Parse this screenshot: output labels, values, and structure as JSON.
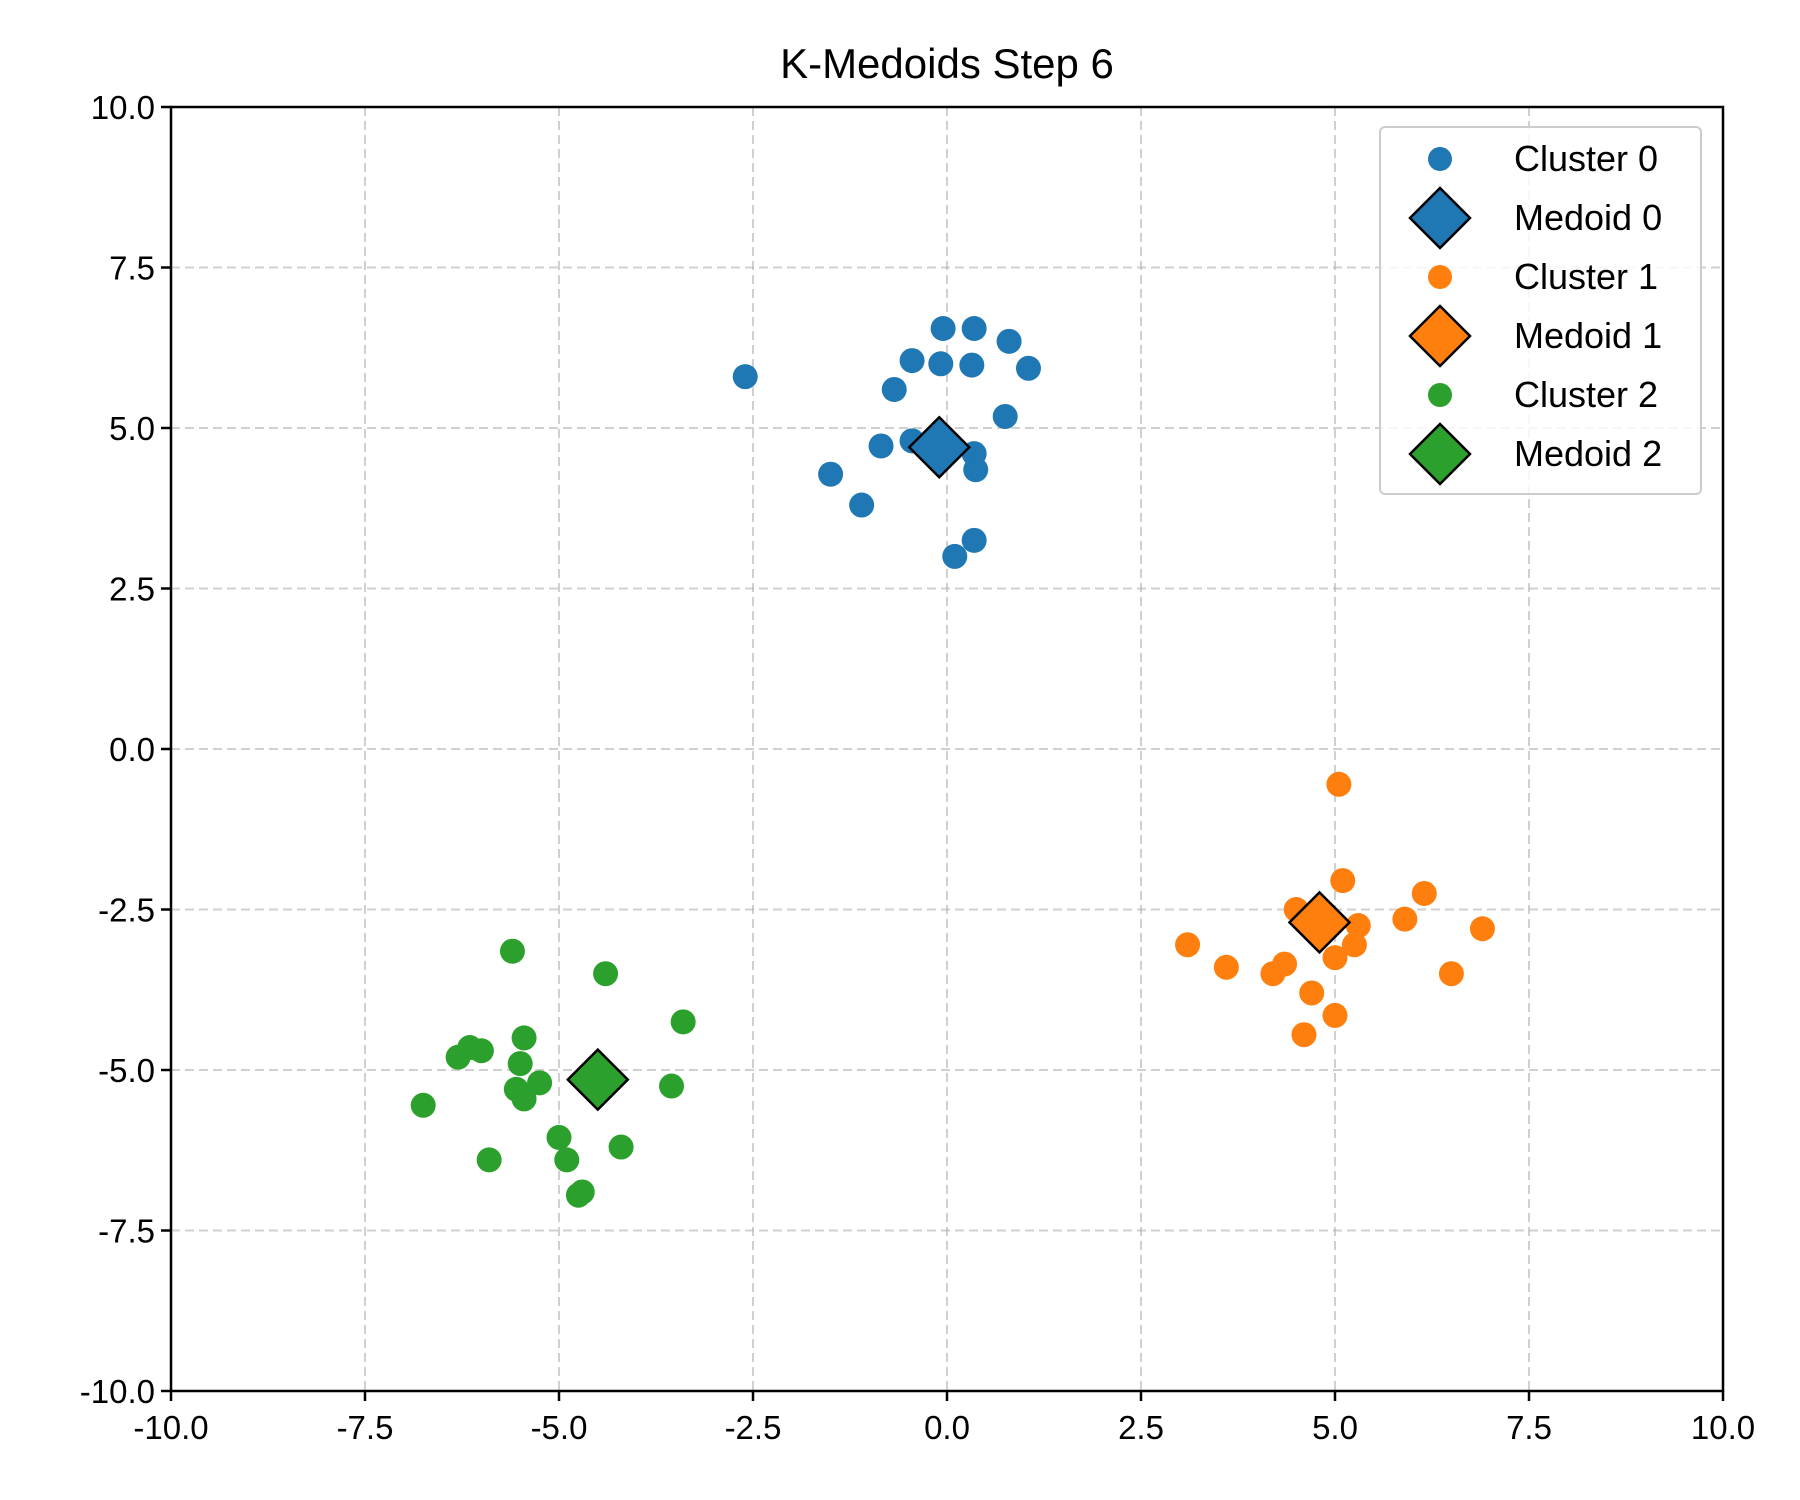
{
  "chart_data": {
    "type": "scatter",
    "title": "K-Medoids Step 6",
    "xlabel": "",
    "ylabel": "",
    "xlim": [
      -10,
      10
    ],
    "ylim": [
      -10,
      10
    ],
    "grid": true,
    "legend_position": "top-right",
    "xticks": [
      -10,
      -7.5,
      -5,
      -2.5,
      0,
      2.5,
      5,
      7.5,
      10
    ],
    "yticks": [
      -10,
      -7.5,
      -5,
      -2.5,
      0,
      2.5,
      5,
      7.5,
      10
    ],
    "xtick_labels": [
      "-10.0",
      "-7.5",
      "-5.0",
      "-2.5",
      "0.0",
      "2.5",
      "5.0",
      "7.5",
      "10.0"
    ],
    "ytick_labels": [
      "-10.0",
      "-7.5",
      "-5.0",
      "-2.5",
      "0.0",
      "2.5",
      "5.0",
      "7.5",
      "10.0"
    ],
    "series": [
      {
        "name": "Cluster 0",
        "color": "#1f77b4",
        "medoid_label": "Medoid 0",
        "medoid": [
          -0.1,
          4.7
        ],
        "points": [
          [
            -2.6,
            5.8
          ],
          [
            -0.05,
            6.55
          ],
          [
            0.35,
            6.55
          ],
          [
            0.8,
            6.35
          ],
          [
            -0.45,
            6.05
          ],
          [
            -0.08,
            6.0
          ],
          [
            0.32,
            5.98
          ],
          [
            1.05,
            5.93
          ],
          [
            -0.68,
            5.6
          ],
          [
            0.75,
            5.18
          ],
          [
            -0.85,
            4.72
          ],
          [
            -0.45,
            4.8
          ],
          [
            0.35,
            4.6
          ],
          [
            0.37,
            4.35
          ],
          [
            -1.5,
            4.28
          ],
          [
            -1.1,
            3.8
          ],
          [
            0.35,
            3.25
          ],
          [
            0.1,
            3.0
          ]
        ]
      },
      {
        "name": "Cluster 1",
        "color": "#ff7f0e",
        "medoid_label": "Medoid 1",
        "medoid": [
          4.8,
          -2.7
        ],
        "points": [
          [
            5.05,
            -0.55
          ],
          [
            5.1,
            -2.05
          ],
          [
            6.15,
            -2.25
          ],
          [
            4.5,
            -2.5
          ],
          [
            5.9,
            -2.65
          ],
          [
            5.3,
            -2.75
          ],
          [
            6.9,
            -2.8
          ],
          [
            3.1,
            -3.05
          ],
          [
            5.25,
            -3.05
          ],
          [
            5.0,
            -3.25
          ],
          [
            4.35,
            -3.35
          ],
          [
            3.6,
            -3.4
          ],
          [
            4.2,
            -3.5
          ],
          [
            6.5,
            -3.5
          ],
          [
            4.7,
            -3.8
          ],
          [
            5.0,
            -4.15
          ],
          [
            4.6,
            -4.45
          ]
        ]
      },
      {
        "name": "Cluster 2",
        "color": "#2ca02c",
        "medoid_label": "Medoid 2",
        "medoid": [
          -4.5,
          -5.15
        ],
        "points": [
          [
            -5.6,
            -3.15
          ],
          [
            -4.4,
            -3.5
          ],
          [
            -3.4,
            -4.25
          ],
          [
            -5.45,
            -4.5
          ],
          [
            -6.15,
            -4.65
          ],
          [
            -6.0,
            -4.7
          ],
          [
            -6.3,
            -4.8
          ],
          [
            -5.5,
            -4.9
          ],
          [
            -5.25,
            -5.2
          ],
          [
            -5.55,
            -5.3
          ],
          [
            -3.55,
            -5.25
          ],
          [
            -5.45,
            -5.45
          ],
          [
            -6.75,
            -5.55
          ],
          [
            -5.0,
            -6.05
          ],
          [
            -4.2,
            -6.2
          ],
          [
            -5.9,
            -6.4
          ],
          [
            -4.9,
            -6.4
          ],
          [
            -4.75,
            -6.95
          ],
          [
            -4.7,
            -6.9
          ]
        ]
      }
    ]
  }
}
